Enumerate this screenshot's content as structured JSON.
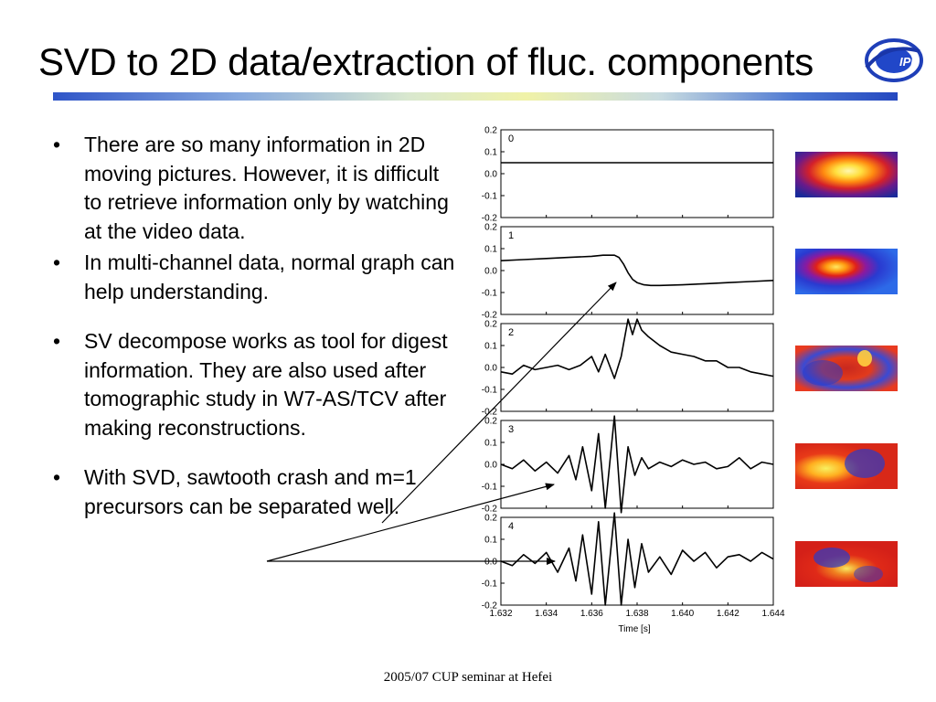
{
  "slide": {
    "title": "SVD to 2D data/extraction of fluc. components",
    "footer": "2005/07 CUP seminar at Hefei",
    "logo_text": "IPP"
  },
  "bullets": [
    {
      "marker": "•",
      "text": "There are so many information in 2D moving pictures. However, it is difficult to retrieve information only by watching at the video data."
    },
    {
      "marker": "•",
      "text": "In multi-channel data, normal graph can help understanding."
    },
    {
      "marker": "•",
      "text": "SV decompose works as tool for digest  information. They are also used after tomographic study in W7-AS/TCV after making reconstructions."
    },
    {
      "marker": "•",
      "text": "With SVD, sawtooth crash and m=1 precursors can be separated well."
    }
  ],
  "chart_data": {
    "type": "line",
    "xlabel": "Time [s]",
    "xlim": [
      1.632,
      1.644
    ],
    "x_ticks": [
      "1.632",
      "1.634",
      "1.636",
      "1.638",
      "1.640",
      "1.642",
      "1.644"
    ],
    "ylim": [
      -0.2,
      0.2
    ],
    "y_ticks": [
      "0.2",
      "0.1",
      "0.0",
      "-0.1",
      "-0.2"
    ],
    "panels": [
      {
        "label": "0",
        "x": [
          1.632,
          1.644
        ],
        "y": [
          0.05,
          0.05
        ]
      },
      {
        "label": "1",
        "x": [
          1.632,
          1.633,
          1.634,
          1.635,
          1.636,
          1.6365,
          1.637,
          1.6372,
          1.6374,
          1.6376,
          1.6378,
          1.638,
          1.6383,
          1.6386,
          1.639,
          1.64,
          1.641,
          1.642,
          1.643,
          1.644
        ],
        "y": [
          0.045,
          0.05,
          0.055,
          0.06,
          0.065,
          0.07,
          0.07,
          0.06,
          0.03,
          -0.01,
          -0.04,
          -0.055,
          -0.065,
          -0.068,
          -0.068,
          -0.065,
          -0.06,
          -0.055,
          -0.05,
          -0.045
        ]
      },
      {
        "label": "2",
        "x": [
          1.632,
          1.6325,
          1.633,
          1.6335,
          1.634,
          1.6345,
          1.635,
          1.6355,
          1.636,
          1.6363,
          1.6366,
          1.637,
          1.6373,
          1.6376,
          1.6378,
          1.638,
          1.6382,
          1.6385,
          1.639,
          1.6395,
          1.64,
          1.6405,
          1.641,
          1.6415,
          1.642,
          1.6425,
          1.643,
          1.6435,
          1.644
        ],
        "y": [
          -0.02,
          -0.03,
          0.01,
          -0.01,
          0.0,
          0.01,
          -0.01,
          0.01,
          0.05,
          -0.02,
          0.06,
          -0.05,
          0.05,
          0.22,
          0.15,
          0.22,
          0.17,
          0.14,
          0.1,
          0.07,
          0.06,
          0.05,
          0.03,
          0.03,
          0.0,
          0.0,
          -0.02,
          -0.03,
          -0.04
        ]
      },
      {
        "label": "3",
        "x": [
          1.632,
          1.6325,
          1.633,
          1.6335,
          1.634,
          1.6345,
          1.635,
          1.6353,
          1.6356,
          1.636,
          1.6363,
          1.6366,
          1.637,
          1.6373,
          1.6376,
          1.6379,
          1.6382,
          1.6385,
          1.639,
          1.6395,
          1.64,
          1.6405,
          1.641,
          1.6415,
          1.642,
          1.6425,
          1.643,
          1.6435,
          1.644
        ],
        "y": [
          0.0,
          -0.02,
          0.02,
          -0.03,
          0.01,
          -0.04,
          0.04,
          -0.07,
          0.08,
          -0.12,
          0.14,
          -0.2,
          0.22,
          -0.22,
          0.08,
          -0.05,
          0.03,
          -0.02,
          0.01,
          -0.01,
          0.02,
          0.0,
          0.01,
          -0.02,
          -0.01,
          0.03,
          -0.02,
          0.01,
          0.0
        ]
      },
      {
        "label": "4",
        "x": [
          1.632,
          1.6325,
          1.633,
          1.6335,
          1.634,
          1.6345,
          1.635,
          1.6353,
          1.6356,
          1.636,
          1.6363,
          1.6366,
          1.637,
          1.6373,
          1.6376,
          1.6379,
          1.6382,
          1.6385,
          1.639,
          1.6395,
          1.64,
          1.6405,
          1.641,
          1.6415,
          1.642,
          1.6425,
          1.643,
          1.6435,
          1.644
        ],
        "y": [
          0.0,
          -0.02,
          0.03,
          -0.01,
          0.04,
          -0.05,
          0.06,
          -0.09,
          0.12,
          -0.15,
          0.18,
          -0.2,
          0.22,
          -0.2,
          0.1,
          -0.12,
          0.08,
          -0.05,
          0.02,
          -0.06,
          0.05,
          0.0,
          0.04,
          -0.03,
          0.02,
          0.03,
          0.0,
          0.04,
          0.01
        ]
      }
    ]
  },
  "thumbnails": [
    {
      "name": "mode-0"
    },
    {
      "name": "mode-1"
    },
    {
      "name": "mode-2"
    },
    {
      "name": "mode-3"
    },
    {
      "name": "mode-4"
    }
  ]
}
